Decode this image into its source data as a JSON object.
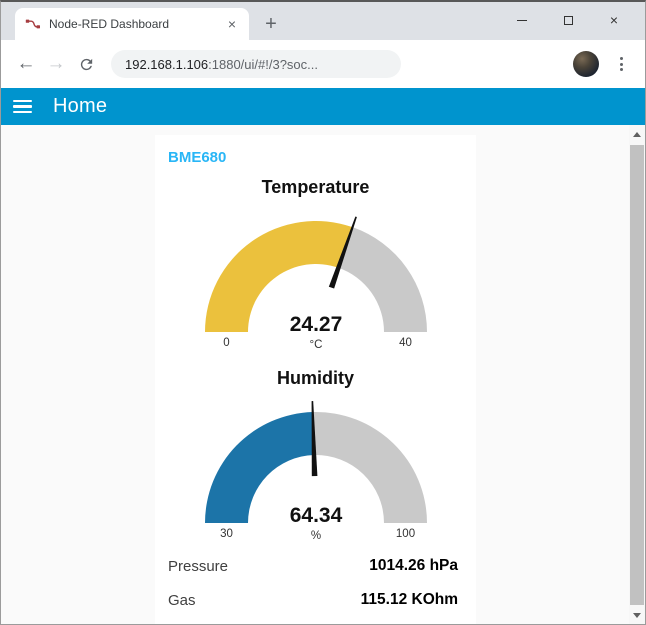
{
  "browser": {
    "tab_title": "Node-RED Dashboard",
    "url_host": "192.168.1.106",
    "url_rest": ":1880/ui/#!/3?soc...",
    "icons": {
      "favicon": "node-red-logo",
      "tab_close": "×",
      "new_tab": "+",
      "window_close": "×",
      "back": "←",
      "forward": "→"
    }
  },
  "appbar": {
    "title": "Home",
    "color": "#0094CE"
  },
  "dashboard": {
    "group_title": "BME680",
    "group_title_color": "#29B6F6",
    "readings": [
      {
        "label": "Pressure",
        "value": "1014.26 hPa"
      },
      {
        "label": "Gas",
        "value": "115.12 KOhm"
      }
    ]
  },
  "chart_data": [
    {
      "type": "gauge",
      "title": "Temperature",
      "value": 24.27,
      "min": 0,
      "max": 40,
      "units": "°C",
      "value_color": "#EBC13D",
      "track_color": "#C9C9C9",
      "needle_color": "#111111"
    },
    {
      "type": "gauge",
      "title": "Humidity",
      "value": 64.34,
      "min": 30,
      "max": 100,
      "units": "%",
      "value_color": "#1C74A8",
      "track_color": "#C9C9C9",
      "needle_color": "#111111"
    }
  ]
}
